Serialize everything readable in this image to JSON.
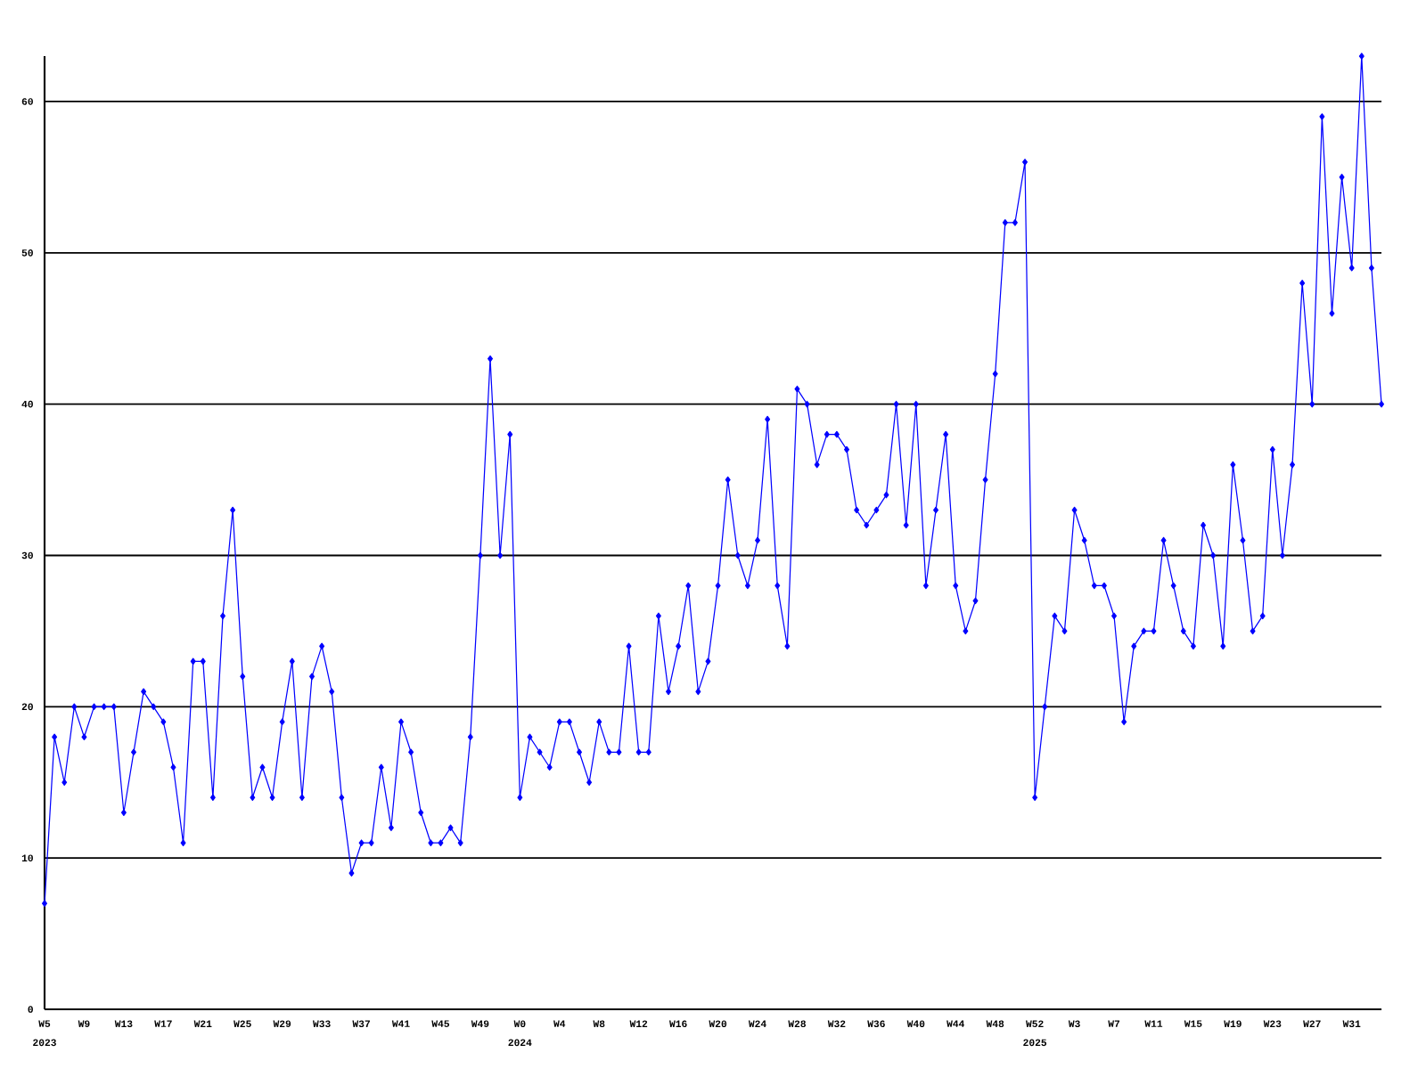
{
  "chart_data": {
    "type": "line",
    "categories": [
      "W5",
      null,
      null,
      null,
      "W9",
      null,
      null,
      null,
      "W13",
      null,
      null,
      null,
      "W17",
      null,
      null,
      null,
      "W21",
      null,
      null,
      null,
      "W25",
      null,
      null,
      null,
      "W29",
      null,
      null,
      null,
      "W33",
      null,
      null,
      null,
      "W37",
      null,
      null,
      null,
      "W41",
      null,
      null,
      null,
      "W45",
      null,
      null,
      null,
      "W49",
      null,
      null,
      null,
      "W0",
      null,
      null,
      null,
      "W4",
      null,
      null,
      null,
      "W8",
      null,
      null,
      null,
      "W12",
      null,
      null,
      null,
      "W16",
      null,
      null,
      null,
      "W20",
      null,
      null,
      null,
      "W24",
      null,
      null,
      null,
      "W28",
      null,
      null,
      null,
      "W32",
      null,
      null,
      null,
      "W36",
      null,
      null,
      null,
      "W40",
      null,
      null,
      null,
      "W44",
      null,
      null,
      null,
      "W48",
      null,
      null,
      null,
      "W52",
      null,
      null,
      null,
      "W3",
      null,
      null,
      null,
      "W7",
      null,
      null,
      null,
      "W11",
      null,
      null,
      null,
      "W15",
      null,
      null,
      null,
      "W19",
      null,
      null,
      null,
      "W23",
      null,
      null,
      null,
      "W27",
      null,
      null,
      null,
      "W31",
      null,
      null,
      null
    ],
    "series": [
      {
        "color": "#0000ff",
        "values": [
          7,
          18,
          15,
          20,
          18,
          20,
          20,
          20,
          13,
          17,
          21,
          20,
          19,
          16,
          11,
          23,
          23,
          14,
          26,
          33,
          22,
          14,
          16,
          14,
          19,
          23,
          14,
          22,
          24,
          21,
          14,
          9,
          11,
          11,
          16,
          12,
          19,
          17,
          13,
          11,
          11,
          12,
          11,
          18,
          30,
          43,
          30,
          38,
          14,
          18,
          17,
          16,
          19,
          19,
          17,
          15,
          19,
          17,
          17,
          24,
          17,
          17,
          26,
          21,
          24,
          28,
          21,
          23,
          28,
          35,
          30,
          28,
          31,
          39,
          28,
          24,
          41,
          40,
          36,
          38,
          38,
          37,
          33,
          32,
          33,
          34,
          40,
          32,
          40,
          28,
          33,
          38,
          28,
          25,
          27,
          35,
          42,
          52,
          52,
          56,
          14,
          20,
          26,
          25,
          33,
          31,
          28,
          28,
          26,
          19,
          24,
          25,
          25,
          31,
          28,
          25,
          24,
          32,
          30,
          24,
          36,
          31,
          25,
          26,
          37,
          30,
          36,
          48,
          40,
          59,
          46,
          55,
          49,
          63,
          49,
          40
        ]
      }
    ],
    "ylim": [
      0,
      63
    ],
    "yticks": [
      0,
      10,
      20,
      30,
      40,
      50,
      60
    ],
    "grid": "y",
    "legend": false,
    "marker": "diamond",
    "line_style": "solid",
    "annotations": [
      "2023",
      "2024",
      "2025"
    ]
  }
}
